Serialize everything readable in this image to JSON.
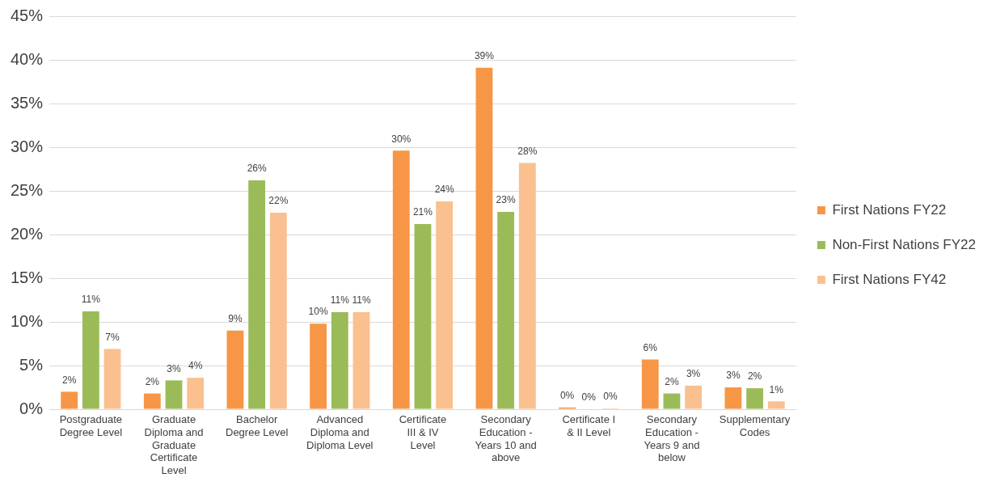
{
  "chart_data": {
    "type": "bar",
    "categories": [
      "Postgraduate Degree Level",
      "Graduate Diploma and Graduate Certificate Level",
      "Bachelor Degree Level",
      "Advanced Diploma and Diploma Level",
      "Certificate III & IV Level",
      "Secondary Education - Years 10 and above",
      "Certificate I & II Level",
      "Secondary Education - Years 9 and below",
      "Supplementary Codes"
    ],
    "series": [
      {
        "name": "First Nations FY22",
        "color": "#f79646",
        "values": [
          2.0,
          1.8,
          9.0,
          9.8,
          29.6,
          39.1,
          0.2,
          5.7,
          2.5
        ],
        "value_labels": [
          "2%",
          "2%",
          "9%",
          "10%",
          "30%",
          "39%",
          "0%",
          "6%",
          "3%"
        ]
      },
      {
        "name": "Non-First Nations FY22",
        "color": "#9bbb59",
        "values": [
          11.2,
          3.3,
          26.2,
          11.1,
          21.2,
          22.6,
          0,
          1.8,
          2.4
        ],
        "value_labels": [
          "11%",
          "3%",
          "26%",
          "11%",
          "21%",
          "23%",
          "0%",
          "2%",
          "2%"
        ]
      },
      {
        "name": "First Nations FY42",
        "color": "#fac090",
        "values": [
          6.9,
          3.6,
          22.5,
          11.1,
          23.8,
          28.2,
          0.1,
          2.7,
          0.9
        ],
        "value_labels": [
          "7%",
          "4%",
          "22%",
          "11%",
          "24%",
          "28%",
          "0%",
          "3%",
          "1%"
        ]
      }
    ],
    "ylim": [
      0,
      45
    ],
    "yticks": [
      {
        "value": 0,
        "label": "0%"
      },
      {
        "value": 5,
        "label": "5%"
      },
      {
        "value": 10,
        "label": "10%"
      },
      {
        "value": 15,
        "label": "15%"
      },
      {
        "value": 20,
        "label": "20%"
      },
      {
        "value": 25,
        "label": "25%"
      },
      {
        "value": 30,
        "label": "30%"
      },
      {
        "value": 35,
        "label": "35%"
      },
      {
        "value": 40,
        "label": "40%"
      },
      {
        "value": 45,
        "label": "45%"
      }
    ],
    "grid": "y",
    "legend": "right"
  }
}
